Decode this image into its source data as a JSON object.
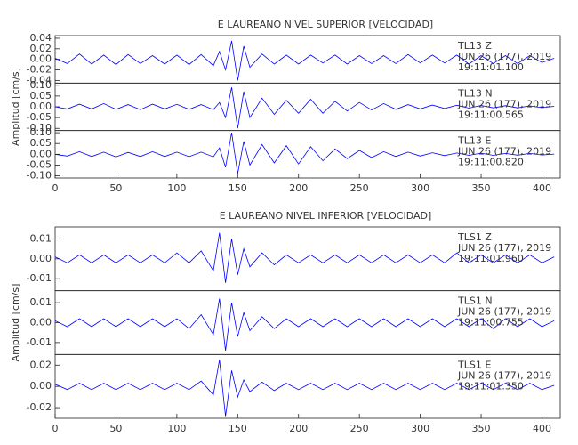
{
  "chart_data": [
    {
      "type": "line",
      "title": "E LAUREANO NIVEL SUPERIOR [VELOCIDAD]",
      "ylabel": "Amplitud [cm/s]",
      "x": [
        0,
        10,
        20,
        30,
        40,
        50,
        60,
        70,
        80,
        90,
        100,
        110,
        120,
        130,
        135,
        140,
        145,
        150,
        155,
        160,
        170,
        180,
        190,
        200,
        210,
        220,
        230,
        240,
        250,
        260,
        270,
        280,
        290,
        300,
        310,
        320,
        330,
        340,
        350,
        360,
        370,
        380,
        390,
        400,
        410
      ],
      "xlim": [
        0,
        415
      ],
      "xticks": [
        0,
        50,
        100,
        150,
        200,
        250,
        300,
        350,
        400
      ],
      "panels": [
        {
          "name": "TL13  Z",
          "date": "JUN 26 (177), 2019",
          "time": "19:11:01.100",
          "color": "#0000ff",
          "ylim": [
            -0.045,
            0.045
          ],
          "yticks": [
            0.04,
            0.02,
            {
              "value": 0,
              "label": "0.00"
            },
            -0.02,
            -0.04
          ],
          "values": [
            0.002,
            -0.008,
            0.01,
            -0.009,
            0.008,
            -0.01,
            0.009,
            -0.008,
            0.007,
            -0.009,
            0.008,
            -0.01,
            0.009,
            -0.012,
            0.015,
            -0.02,
            0.035,
            -0.04,
            0.025,
            -0.015,
            0.01,
            -0.009,
            0.008,
            -0.009,
            0.008,
            -0.007,
            0.008,
            -0.009,
            0.007,
            -0.008,
            0.007,
            -0.008,
            0.009,
            -0.007,
            0.008,
            -0.007,
            0.008,
            -0.009,
            0.007,
            -0.008,
            0.007,
            -0.008,
            0.007,
            -0.006,
            0.002
          ]
        },
        {
          "name": "TL13  N",
          "date": "JUN 26 (177), 2019",
          "time": "19:11:00.565",
          "color": "#0000ff",
          "ylim": [
            -0.11,
            0.11
          ],
          "yticks": [
            {
              "value": 0.1,
              "label": "0.10"
            },
            0.05,
            {
              "value": 0,
              "label": "0.00"
            },
            -0.05,
            {
              "value": -0.1,
              "label": "-0.10"
            }
          ],
          "values": [
            0,
            -0.01,
            0.012,
            -0.01,
            0.015,
            -0.012,
            0.01,
            -0.013,
            0.012,
            -0.01,
            0.011,
            -0.012,
            0.01,
            -0.013,
            0.02,
            -0.05,
            0.09,
            -0.1,
            0.07,
            -0.05,
            0.04,
            -0.035,
            0.03,
            -0.03,
            0.035,
            -0.03,
            0.025,
            -0.02,
            0.02,
            -0.015,
            0.015,
            -0.012,
            0.01,
            -0.01,
            0.008,
            -0.008,
            0.007,
            -0.006,
            0.006,
            -0.005,
            0.005,
            -0.005,
            0.004,
            -0.004,
            0.002
          ]
        },
        {
          "name": "TL13  E",
          "date": "JUN 26 (177), 2019",
          "time": "19:11:00.820",
          "color": "#0000ff",
          "ylim": [
            -0.11,
            0.11
          ],
          "yticks": [
            {
              "value": 0.1,
              "label": "0.10"
            },
            0.05,
            {
              "value": 0,
              "label": "0.00"
            },
            -0.05,
            {
              "value": -0.1,
              "label": "-0.10"
            }
          ],
          "values": [
            0,
            -0.008,
            0.012,
            -0.01,
            0.01,
            -0.012,
            0.009,
            -0.01,
            0.012,
            -0.01,
            0.01,
            -0.011,
            0.01,
            -0.012,
            0.03,
            -0.06,
            0.1,
            -0.09,
            0.06,
            -0.05,
            0.045,
            -0.04,
            0.04,
            -0.045,
            0.035,
            -0.03,
            0.025,
            -0.02,
            0.018,
            -0.015,
            0.012,
            -0.01,
            0.01,
            -0.008,
            0.007,
            -0.006,
            0.006,
            -0.005,
            0.005,
            -0.005,
            0.004,
            -0.004,
            0.004,
            -0.003,
            0.001
          ]
        }
      ]
    },
    {
      "type": "line",
      "title": "E LAUREANO NIVEL INFERIOR [VELOCIDAD]",
      "ylabel": "Amplitud [cm/s]",
      "x": [
        0,
        10,
        20,
        30,
        40,
        50,
        60,
        70,
        80,
        90,
        100,
        110,
        120,
        130,
        135,
        140,
        145,
        150,
        155,
        160,
        170,
        180,
        190,
        200,
        210,
        220,
        230,
        240,
        250,
        260,
        270,
        280,
        290,
        300,
        310,
        320,
        330,
        340,
        350,
        360,
        370,
        380,
        390,
        400,
        410
      ],
      "xlim": [
        0,
        415
      ],
      "xticks": [
        0,
        50,
        100,
        150,
        200,
        250,
        300,
        350,
        400
      ],
      "panels": [
        {
          "name": "TLS1   Z",
          "date": "JUN 26 (177), 2019",
          "time": "19:11:01.960",
          "color": "#0000ff",
          "ylim": [
            -0.016,
            0.016
          ],
          "yticks": [
            0.01,
            {
              "value": 0,
              "label": "0.00"
            },
            -0.01
          ],
          "values": [
            0.001,
            -0.002,
            0.002,
            -0.002,
            0.002,
            -0.002,
            0.002,
            -0.002,
            0.002,
            -0.002,
            0.003,
            -0.002,
            0.004,
            -0.006,
            0.013,
            -0.012,
            0.01,
            -0.008,
            0.005,
            -0.004,
            0.003,
            -0.003,
            0.002,
            -0.002,
            0.002,
            -0.002,
            0.002,
            -0.002,
            0.002,
            -0.002,
            0.002,
            -0.002,
            0.002,
            -0.002,
            0.002,
            -0.002,
            0.003,
            -0.002,
            0.002,
            -0.002,
            0.002,
            -0.002,
            0.002,
            -0.002,
            0.001
          ]
        },
        {
          "name": "TLS1   N",
          "date": "JUN 26 (177), 2019",
          "time": "19:11:00.755",
          "color": "#0000ff",
          "ylim": [
            -0.016,
            0.016
          ],
          "yticks": [
            0.01,
            {
              "value": 0,
              "label": "0.00"
            },
            -0.01
          ],
          "values": [
            0.001,
            -0.002,
            0.002,
            -0.002,
            0.002,
            -0.002,
            0.002,
            -0.002,
            0.002,
            -0.002,
            0.002,
            -0.003,
            0.004,
            -0.006,
            0.012,
            -0.014,
            0.01,
            -0.007,
            0.005,
            -0.004,
            0.003,
            -0.003,
            0.002,
            -0.002,
            0.002,
            -0.002,
            0.002,
            -0.002,
            0.002,
            -0.002,
            0.002,
            -0.002,
            0.002,
            -0.002,
            0.002,
            -0.002,
            0.002,
            -0.002,
            0.002,
            -0.003,
            0.002,
            -0.002,
            0.002,
            -0.002,
            0.001
          ]
        },
        {
          "name": "TLS1   E",
          "date": "JUN 26 (177), 2019",
          "time": "19:11:01.350",
          "color": "#0000ff",
          "ylim": [
            -0.03,
            0.03
          ],
          "yticks": [
            0.02,
            {
              "value": 0,
              "label": "0.00"
            },
            -0.02
          ],
          "values": [
            0.002,
            -0.003,
            0.003,
            -0.003,
            0.003,
            -0.003,
            0.003,
            -0.003,
            0.003,
            -0.003,
            0.003,
            -0.003,
            0.005,
            -0.008,
            0.025,
            -0.028,
            0.015,
            -0.01,
            0.006,
            -0.005,
            0.004,
            -0.004,
            0.003,
            -0.003,
            0.003,
            -0.003,
            0.003,
            -0.003,
            0.003,
            -0.003,
            0.003,
            -0.003,
            0.003,
            -0.003,
            0.003,
            -0.003,
            0.003,
            -0.003,
            0.003,
            -0.003,
            0.003,
            -0.003,
            0.003,
            -0.003,
            0.001
          ]
        }
      ]
    }
  ]
}
